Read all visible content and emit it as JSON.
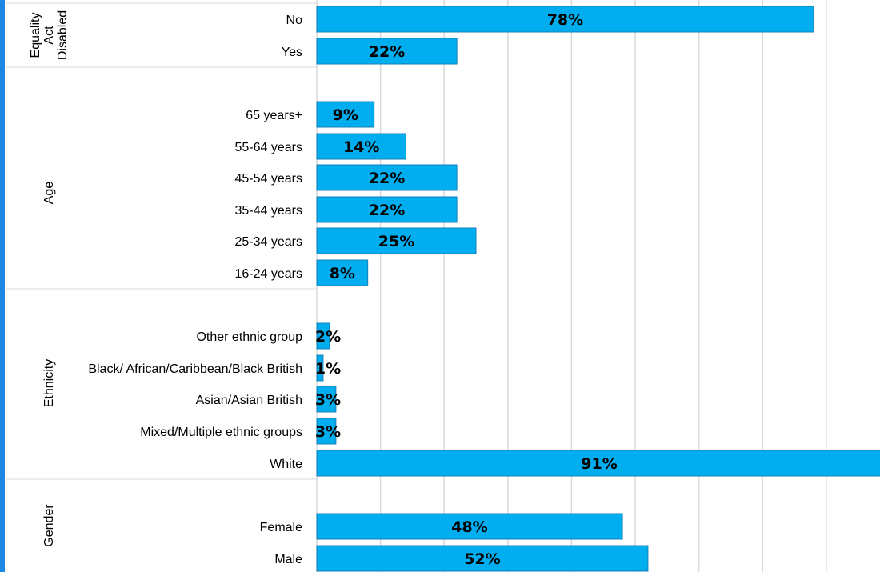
{
  "chart_data": {
    "type": "bar",
    "orientation": "horizontal",
    "xlim": [
      0,
      100
    ],
    "grid": true,
    "value_suffix": "%",
    "colors": {
      "bar": "#00AEEF",
      "bar_border": "#1A7FB8",
      "grid": "#D9D9D9",
      "accent": "#1E88E5"
    },
    "groups": [
      {
        "name": "Equality Act Disabled",
        "name_lines": [
          "Equality",
          "Act",
          "Disabled"
        ],
        "categories": [
          "No",
          "Yes"
        ],
        "values": [
          78,
          22
        ]
      },
      {
        "name": "Age",
        "name_lines": [
          "Age"
        ],
        "categories": [
          "65 years+",
          "55-64 years",
          "45-54 years",
          "35-44 years",
          "25-34 years",
          "16-24 years"
        ],
        "values": [
          9,
          14,
          22,
          22,
          25,
          8
        ]
      },
      {
        "name": "Ethnicity",
        "name_lines": [
          "Ethnicity"
        ],
        "categories": [
          "Other ethnic group",
          "Black/ African/Caribbean/Black British",
          "Asian/Asian British",
          "Mixed/Multiple ethnic groups",
          "White"
        ],
        "values": [
          2,
          1,
          3,
          3,
          91
        ]
      },
      {
        "name": "Gender",
        "name_lines": [
          "Gender"
        ],
        "categories": [
          "Female",
          "Male"
        ],
        "values": [
          48,
          52
        ]
      }
    ]
  }
}
